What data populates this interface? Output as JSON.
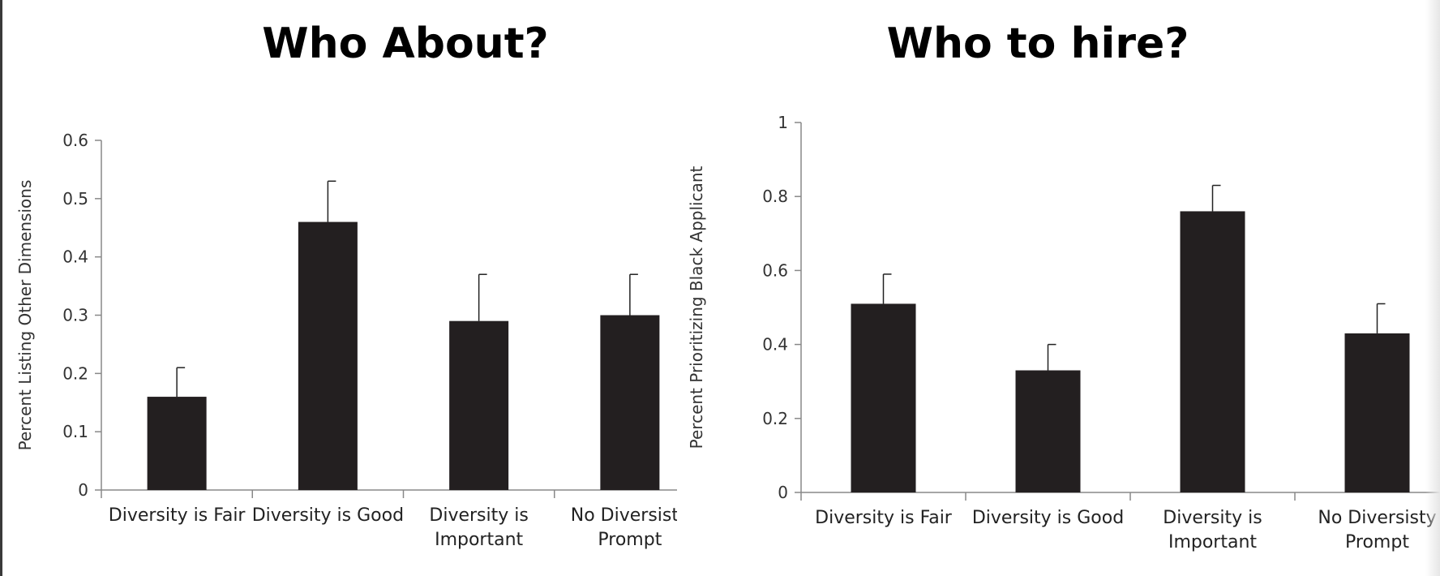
{
  "chart_data": [
    {
      "type": "bar",
      "title": "Who About?",
      "ylabel": "Percent Listing Other Dimensions",
      "xlabel": "",
      "categories": [
        [
          "Diversity is Fair"
        ],
        [
          "Diversity is Good"
        ],
        [
          "Diversity is",
          "Important"
        ],
        [
          "No Diversisty",
          "Prompt"
        ]
      ],
      "values": [
        0.16,
        0.46,
        0.29,
        0.3
      ],
      "error_upper": [
        0.21,
        0.53,
        0.37,
        0.37
      ],
      "ylim": [
        0,
        0.6
      ],
      "yticks": [
        "0",
        "0.1",
        "0.2",
        "0.3",
        "0.4",
        "0.5",
        "0.6"
      ],
      "grid": false,
      "bar_color": "#231f20"
    },
    {
      "type": "bar",
      "title": "Who to hire?",
      "ylabel": "Percent Prioritizing Black Applicant",
      "xlabel": "",
      "categories": [
        [
          "Diversity is Fair"
        ],
        [
          "Diversity is Good"
        ],
        [
          "Diversity is",
          "Important"
        ],
        [
          "No Diversisty",
          "Prompt"
        ]
      ],
      "values": [
        0.51,
        0.33,
        0.76,
        0.43
      ],
      "error_upper": [
        0.59,
        0.4,
        0.83,
        0.51
      ],
      "ylim": [
        0,
        1
      ],
      "yticks": [
        "0",
        "0.2",
        "0.4",
        "0.6",
        "0.8",
        "1"
      ],
      "grid": false,
      "bar_color": "#231f20"
    }
  ]
}
